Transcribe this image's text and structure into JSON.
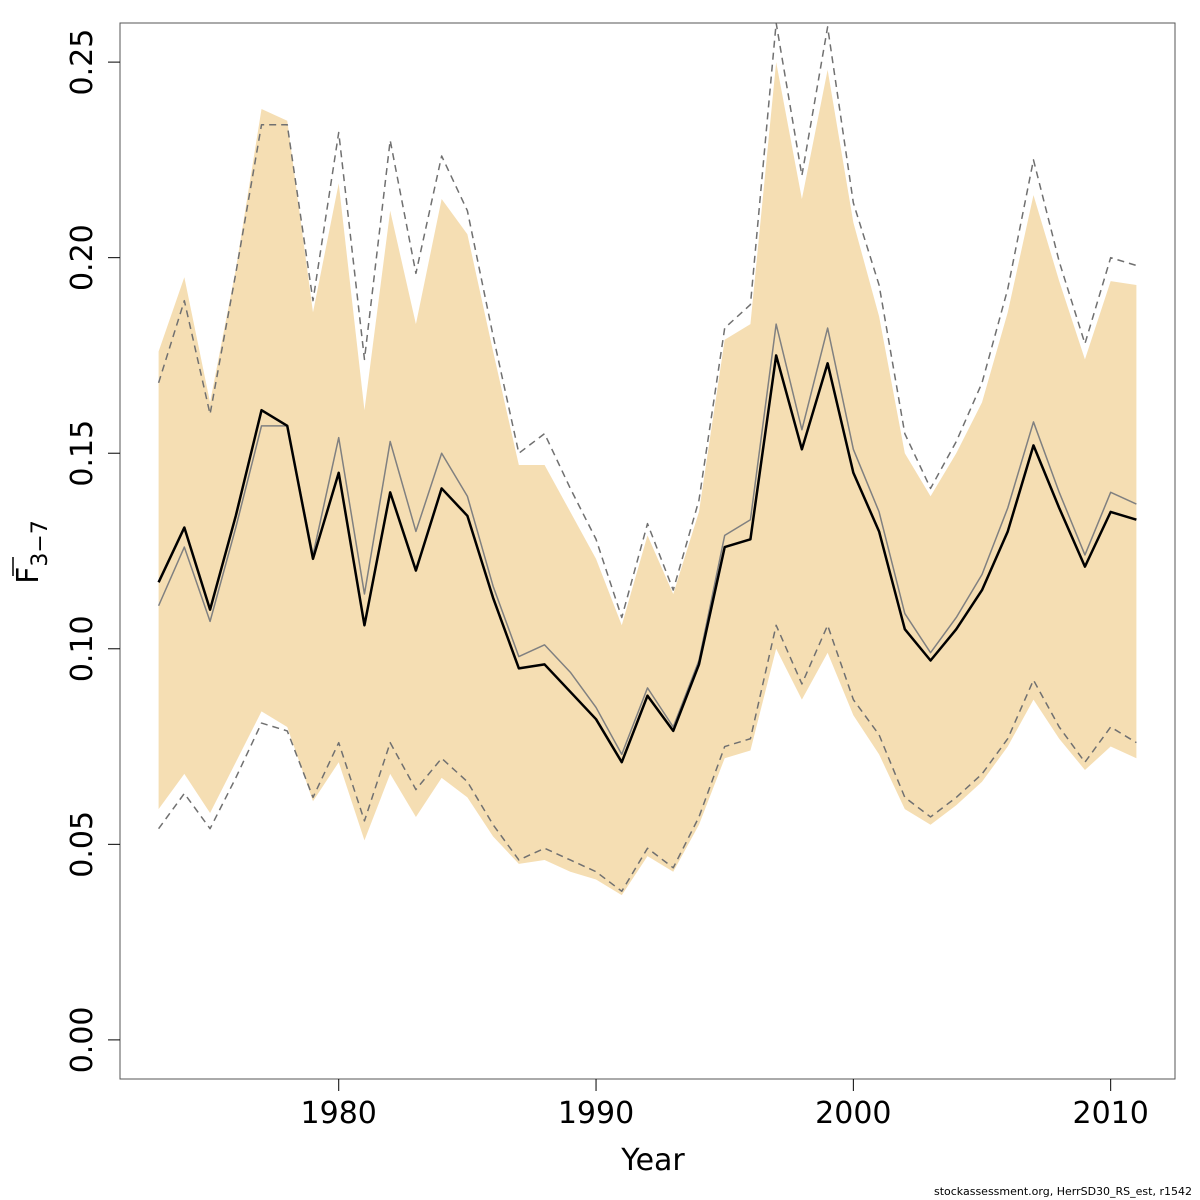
{
  "chart_data": {
    "type": "line",
    "title": "",
    "xlabel": "Year",
    "ylabel": {
      "main": "F",
      "subscript": "3−7",
      "overline": true
    },
    "x_ticks": [
      1980,
      1990,
      2000,
      2010
    ],
    "y_ticks": [
      "0.00",
      "0.05",
      "0.10",
      "0.15",
      "0.20",
      "0.25"
    ],
    "xlim": [
      1971.5,
      2012.5
    ],
    "ylim": [
      -0.01,
      0.26
    ],
    "grid": false,
    "colors": {
      "band": "#f5deb3",
      "estimate": "#000000",
      "previous": "#808080",
      "bounds": "#707070"
    },
    "x": [
      1973,
      1974,
      1975,
      1976,
      1977,
      1978,
      1979,
      1980,
      1981,
      1982,
      1983,
      1984,
      1985,
      1986,
      1987,
      1988,
      1989,
      1990,
      1991,
      1992,
      1993,
      1994,
      1995,
      1996,
      1997,
      1998,
      1999,
      2000,
      2001,
      2002,
      2003,
      2004,
      2005,
      2006,
      2007,
      2008,
      2009,
      2010,
      2011
    ],
    "series": [
      {
        "role": "band-upper",
        "values": [
          0.176,
          0.195,
          0.163,
          0.197,
          0.238,
          0.235,
          0.186,
          0.219,
          0.161,
          0.212,
          0.183,
          0.215,
          0.206,
          0.176,
          0.147,
          0.147,
          0.135,
          0.123,
          0.106,
          0.129,
          0.114,
          0.135,
          0.179,
          0.183,
          0.25,
          0.215,
          0.248,
          0.209,
          0.185,
          0.15,
          0.139,
          0.15,
          0.163,
          0.186,
          0.216,
          0.194,
          0.174,
          0.194,
          0.193
        ]
      },
      {
        "role": "band-lower",
        "values": [
          0.059,
          0.068,
          0.058,
          0.071,
          0.084,
          0.08,
          0.061,
          0.071,
          0.051,
          0.068,
          0.057,
          0.067,
          0.062,
          0.052,
          0.045,
          0.046,
          0.043,
          0.041,
          0.037,
          0.047,
          0.043,
          0.055,
          0.072,
          0.074,
          0.1,
          0.087,
          0.099,
          0.083,
          0.073,
          0.059,
          0.055,
          0.06,
          0.066,
          0.075,
          0.087,
          0.077,
          0.069,
          0.075,
          0.072
        ]
      },
      {
        "role": "estimate",
        "values": [
          0.117,
          0.131,
          0.11,
          0.134,
          0.161,
          0.157,
          0.123,
          0.145,
          0.106,
          0.14,
          0.12,
          0.141,
          0.134,
          0.113,
          0.095,
          0.096,
          0.089,
          0.082,
          0.071,
          0.088,
          0.079,
          0.096,
          0.126,
          0.128,
          0.175,
          0.151,
          0.173,
          0.145,
          0.13,
          0.105,
          0.097,
          0.105,
          0.115,
          0.13,
          0.152,
          0.136,
          0.121,
          0.135,
          0.133
        ]
      },
      {
        "role": "previous-estimate",
        "values": [
          0.111,
          0.126,
          0.107,
          0.131,
          0.157,
          0.157,
          0.124,
          0.154,
          0.114,
          0.153,
          0.13,
          0.15,
          0.139,
          0.116,
          0.098,
          0.101,
          0.094,
          0.085,
          0.073,
          0.09,
          0.08,
          0.097,
          0.129,
          0.133,
          0.183,
          0.156,
          0.182,
          0.151,
          0.135,
          0.109,
          0.099,
          0.108,
          0.119,
          0.136,
          0.158,
          0.14,
          0.124,
          0.14,
          0.137
        ]
      },
      {
        "role": "previous-upper",
        "values": [
          0.168,
          0.189,
          0.16,
          0.196,
          0.234,
          0.234,
          0.189,
          0.232,
          0.174,
          0.23,
          0.196,
          0.226,
          0.212,
          0.18,
          0.15,
          0.155,
          0.141,
          0.128,
          0.108,
          0.132,
          0.115,
          0.138,
          0.182,
          0.188,
          0.26,
          0.221,
          0.259,
          0.214,
          0.193,
          0.155,
          0.141,
          0.153,
          0.168,
          0.192,
          0.225,
          0.199,
          0.178,
          0.2,
          0.198
        ]
      },
      {
        "role": "previous-lower",
        "values": [
          0.054,
          0.063,
          0.054,
          0.067,
          0.081,
          0.079,
          0.062,
          0.076,
          0.056,
          0.076,
          0.064,
          0.072,
          0.066,
          0.055,
          0.046,
          0.049,
          0.046,
          0.043,
          0.038,
          0.049,
          0.044,
          0.057,
          0.075,
          0.077,
          0.106,
          0.091,
          0.106,
          0.087,
          0.078,
          0.062,
          0.057,
          0.062,
          0.068,
          0.077,
          0.092,
          0.08,
          0.071,
          0.08,
          0.076
        ]
      }
    ]
  },
  "footnote": "stockassessment.org, HerrSD30_RS_est, r1542"
}
